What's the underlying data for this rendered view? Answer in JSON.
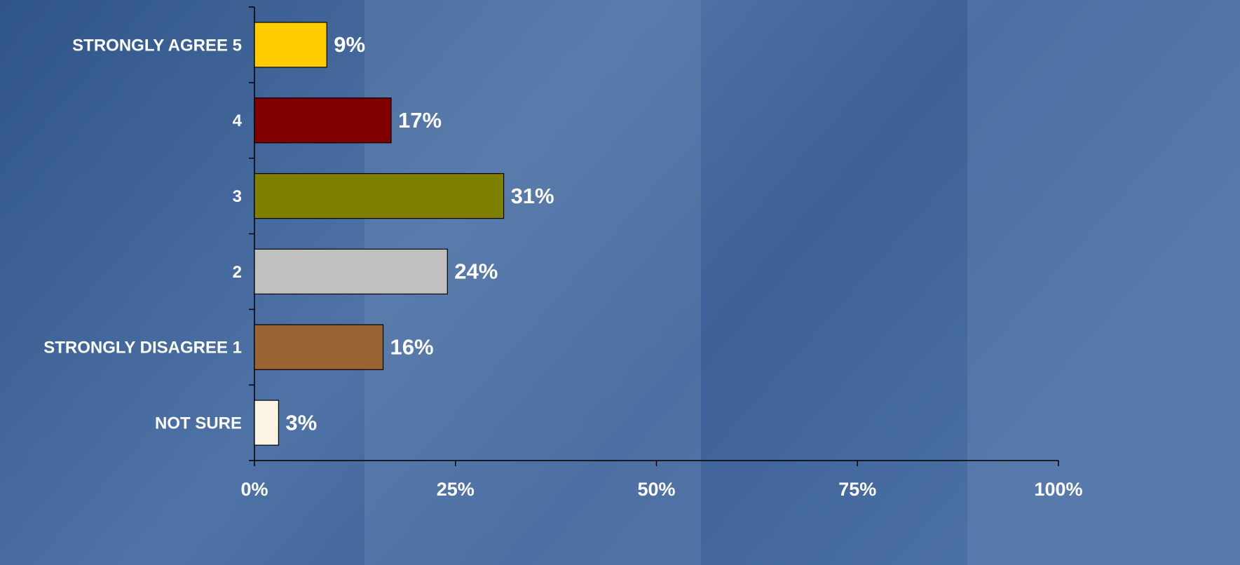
{
  "chart_data": {
    "type": "hbar",
    "categories": [
      "STRONGLY AGREE 5",
      "4",
      "3",
      "2",
      "STRONGLY DISAGREE 1",
      "NOT SURE"
    ],
    "values": [
      9,
      17,
      31,
      24,
      16,
      3
    ],
    "value_labels": [
      "9%",
      "17%",
      "31%",
      "24%",
      "16%",
      "3%"
    ],
    "colors": [
      "#ffcc00",
      "#800000",
      "#808000",
      "#c0c0c0",
      "#996633",
      "#fbf3e4"
    ],
    "xlim": [
      0,
      100
    ],
    "xticks": [
      {
        "value": 0,
        "label": "0%"
      },
      {
        "value": 25,
        "label": "25%"
      },
      {
        "value": 50,
        "label": "50%"
      },
      {
        "value": 75,
        "label": "75%"
      },
      {
        "value": 100,
        "label": "100%"
      }
    ]
  }
}
